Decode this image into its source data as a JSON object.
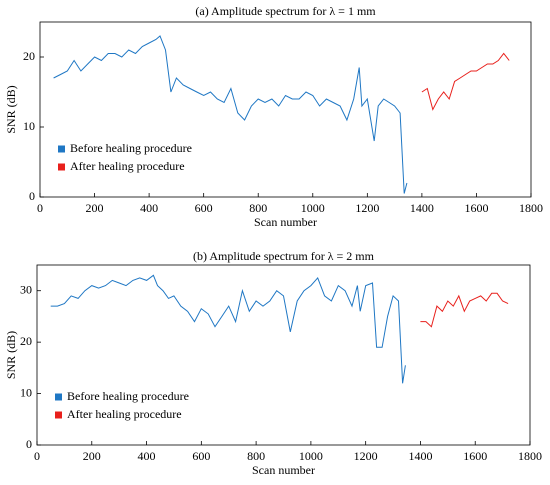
{
  "chart_data": [
    {
      "type": "line",
      "title": "(a) Amplitude spectrum for λ = 1 mm",
      "xlabel": "Scan number",
      "ylabel": "SNR (dB)",
      "xlim": [
        0,
        1800
      ],
      "xticks": [
        0,
        200,
        400,
        600,
        800,
        1000,
        1200,
        1400,
        1600,
        1800
      ],
      "ylim": [
        0,
        25
      ],
      "yticks": [
        0,
        10,
        20
      ],
      "legend": "lower left",
      "series": [
        {
          "name": "Before healing procedure",
          "color": "#1f77c4",
          "x": [
            50,
            75,
            100,
            125,
            150,
            175,
            200,
            225,
            250,
            275,
            300,
            325,
            350,
            375,
            400,
            425,
            440,
            460,
            480,
            500,
            525,
            550,
            575,
            600,
            625,
            650,
            675,
            700,
            725,
            750,
            775,
            800,
            825,
            850,
            875,
            900,
            925,
            950,
            975,
            1000,
            1025,
            1050,
            1075,
            1100,
            1125,
            1150,
            1170,
            1180,
            1200,
            1225,
            1240,
            1260,
            1280,
            1300,
            1320,
            1335,
            1345
          ],
          "values": [
            17,
            17.5,
            18,
            19.5,
            18,
            19,
            20,
            19.5,
            20.5,
            20.5,
            20,
            21,
            20.5,
            21.5,
            22,
            22.5,
            23,
            21,
            15,
            17,
            16,
            15.5,
            15,
            14.5,
            15,
            14,
            13.5,
            15.5,
            12,
            11,
            13,
            14,
            13.5,
            14,
            13,
            14.5,
            14,
            14,
            15,
            14.5,
            13,
            14,
            13.5,
            13,
            11,
            14,
            18.5,
            13,
            14,
            8,
            13,
            14,
            13.5,
            13,
            12,
            0.5,
            2
          ]
        },
        {
          "name": "After healing procedure",
          "color": "#e8201c",
          "x": [
            1400,
            1420,
            1440,
            1460,
            1480,
            1500,
            1520,
            1540,
            1560,
            1580,
            1600,
            1620,
            1640,
            1660,
            1680,
            1700,
            1720
          ],
          "values": [
            15,
            15.5,
            12.5,
            14,
            15,
            14,
            16.5,
            17,
            17.5,
            18,
            18,
            18.5,
            19,
            19,
            19.5,
            20.5,
            19.5
          ]
        }
      ]
    },
    {
      "type": "line",
      "title": "(b) Amplitude spectrum for λ = 2 mm",
      "xlabel": "Scan number",
      "ylabel": "SNR (dB)",
      "xlim": [
        0,
        1800
      ],
      "xticks": [
        0,
        200,
        400,
        600,
        800,
        1000,
        1200,
        1400,
        1600,
        1800
      ],
      "ylim": [
        0,
        35
      ],
      "yticks": [
        0,
        10,
        20,
        30
      ],
      "legend": "lower left",
      "series": [
        {
          "name": "Before healing procedure",
          "color": "#1f77c4",
          "x": [
            50,
            75,
            100,
            125,
            150,
            175,
            200,
            225,
            250,
            275,
            300,
            325,
            350,
            375,
            400,
            425,
            440,
            460,
            480,
            500,
            525,
            550,
            575,
            600,
            625,
            650,
            675,
            700,
            725,
            750,
            775,
            800,
            825,
            850,
            875,
            900,
            925,
            950,
            975,
            1000,
            1025,
            1050,
            1075,
            1100,
            1125,
            1150,
            1170,
            1180,
            1200,
            1225,
            1240,
            1260,
            1280,
            1300,
            1320,
            1335,
            1345
          ],
          "values": [
            27,
            27,
            27.5,
            29,
            28.5,
            30,
            31,
            30.5,
            31,
            32,
            31.5,
            31,
            32,
            32.5,
            32,
            33,
            31,
            30,
            28.5,
            29,
            27,
            26,
            24,
            26.5,
            25.5,
            23,
            25,
            27,
            24,
            30,
            26,
            28,
            27,
            28,
            30,
            29,
            22,
            28,
            30,
            31,
            32.5,
            29,
            28,
            31,
            30,
            27,
            31,
            26,
            31,
            31.5,
            19,
            19,
            25,
            29,
            28,
            12,
            15.5
          ]
        },
        {
          "name": "After healing procedure",
          "color": "#e8201c",
          "x": [
            1400,
            1420,
            1440,
            1460,
            1480,
            1500,
            1520,
            1540,
            1560,
            1580,
            1600,
            1620,
            1640,
            1660,
            1680,
            1700,
            1720
          ],
          "values": [
            24,
            24,
            23,
            27,
            26,
            28,
            27,
            29,
            26,
            28,
            28.5,
            29,
            28,
            29.5,
            29.5,
            28,
            27.5
          ]
        }
      ]
    }
  ]
}
